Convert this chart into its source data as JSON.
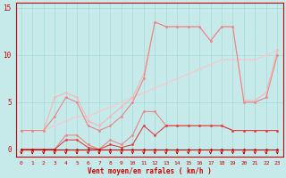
{
  "xlabel": "Vent moyen/en rafales ( km/h )",
  "bg_color": "#c5eae9",
  "grid_color": "#a8d8d8",
  "x": [
    0,
    1,
    2,
    3,
    4,
    5,
    6,
    7,
    8,
    9,
    10,
    11,
    12,
    13,
    14,
    15,
    16,
    17,
    18,
    19,
    20,
    21,
    22,
    23
  ],
  "line_lightest": [
    2.0,
    2.0,
    2.0,
    2.5,
    3.0,
    3.5,
    3.5,
    4.0,
    4.5,
    5.0,
    5.5,
    6.0,
    6.5,
    7.0,
    7.5,
    8.0,
    8.5,
    9.0,
    9.5,
    9.5,
    9.5,
    9.5,
    10.0,
    10.5
  ],
  "line_light1": [
    2.0,
    2.0,
    2.0,
    5.5,
    6.0,
    5.5,
    3.0,
    2.5,
    3.5,
    4.5,
    5.5,
    8.0,
    13.5,
    13.0,
    13.0,
    13.0,
    13.0,
    11.5,
    13.0,
    13.0,
    5.2,
    5.2,
    6.0,
    10.5
  ],
  "line_light2": [
    2.0,
    2.0,
    2.0,
    3.5,
    5.5,
    5.0,
    2.5,
    2.0,
    2.5,
    3.5,
    5.0,
    7.5,
    13.5,
    13.0,
    13.0,
    13.0,
    13.0,
    11.5,
    13.0,
    13.0,
    5.0,
    5.0,
    5.5,
    10.0
  ],
  "line_mid1": [
    0.0,
    0.0,
    0.0,
    0.0,
    1.5,
    1.5,
    0.5,
    0.0,
    1.0,
    0.5,
    1.5,
    4.0,
    4.0,
    2.5,
    2.5,
    2.5,
    2.5,
    2.5,
    2.5,
    2.0,
    2.0,
    2.0,
    2.0,
    2.0
  ],
  "line_mid2": [
    0.0,
    0.0,
    0.0,
    0.0,
    1.0,
    1.0,
    0.2,
    0.0,
    0.5,
    0.2,
    0.5,
    2.5,
    1.5,
    2.5,
    2.5,
    2.5,
    2.5,
    2.5,
    2.5,
    2.0,
    2.0,
    2.0,
    2.0,
    2.0
  ],
  "line_dark": [
    0.0,
    0.0,
    0.0,
    0.0,
    0.0,
    0.0,
    0.0,
    0.0,
    0.0,
    0.0,
    0.0,
    0.0,
    0.0,
    0.0,
    0.0,
    0.0,
    0.0,
    0.0,
    0.0,
    0.0,
    0.0,
    0.0,
    0.0,
    0.0
  ],
  "yticks": [
    0,
    5,
    10,
    15
  ],
  "ylim": [
    -0.8,
    15.5
  ],
  "xlim": [
    -0.5,
    23.5
  ],
  "color_dark_red": "#cc0000",
  "color_mid_red": "#dd4444",
  "color_light_red": "#e88888",
  "color_lightest_red": "#f5b8b8",
  "color_lightest2": "#f0cccc",
  "tick_label_color": "#cc0000",
  "spine_color": "#cc0000"
}
